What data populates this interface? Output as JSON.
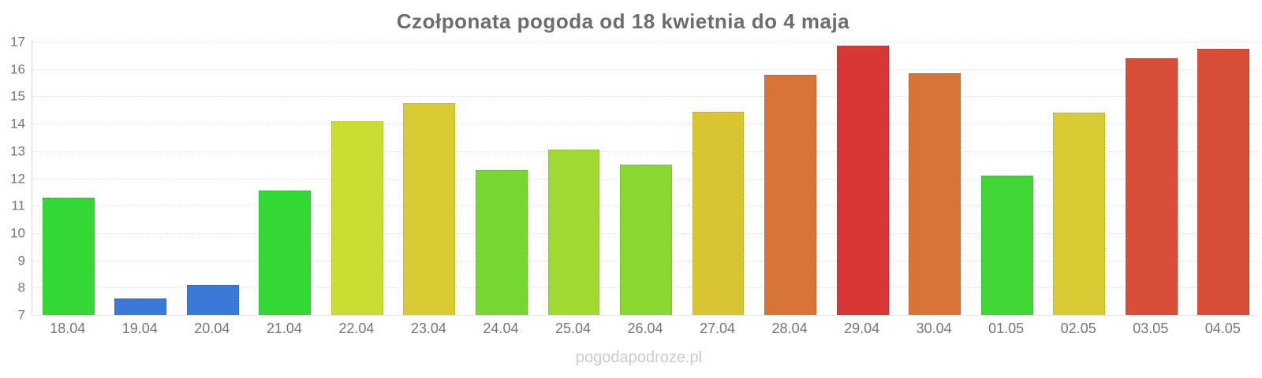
{
  "title": "Czołponata pogoda od 18 kwietnia do 4 maja",
  "watermark": "pogodapodroze.pl",
  "chart_data": {
    "type": "bar",
    "title": "Czołponata pogoda od 18 kwietnia do 4 maja",
    "xlabel": "",
    "ylabel": "",
    "ylim": [
      7,
      17
    ],
    "yticks": [
      7,
      8,
      9,
      10,
      11,
      12,
      13,
      14,
      15,
      16,
      17
    ],
    "grid": "horizontal-dotted",
    "legend": "none",
    "categories": [
      "18.04",
      "19.04",
      "20.04",
      "21.04",
      "22.04",
      "23.04",
      "24.04",
      "25.04",
      "26.04",
      "27.04",
      "28.04",
      "29.04",
      "30.04",
      "01.05",
      "02.05",
      "03.05",
      "04.05"
    ],
    "values": [
      11.3,
      7.6,
      8.1,
      11.55,
      14.1,
      14.75,
      12.3,
      13.05,
      12.5,
      14.45,
      15.8,
      16.85,
      15.85,
      12.1,
      14.4,
      16.4,
      16.75
    ],
    "bar_colors": [
      "#33d834",
      "#3a78d9",
      "#3a78d9",
      "#33d834",
      "#c9dd32",
      "#d9cb33",
      "#76d733",
      "#a0d932",
      "#8cd833",
      "#d9c433",
      "#d97439",
      "#d93636",
      "#d97439",
      "#41d636",
      "#d9cb33",
      "#d94e38",
      "#d94e38"
    ],
    "colors_meaning": {
      "cold_blue": "#3a78d9",
      "mild_green": "#33d834",
      "warm_yellow": "#d9cb33",
      "hot_orange": "#d97439",
      "very_hot_red": "#d93636"
    }
  }
}
